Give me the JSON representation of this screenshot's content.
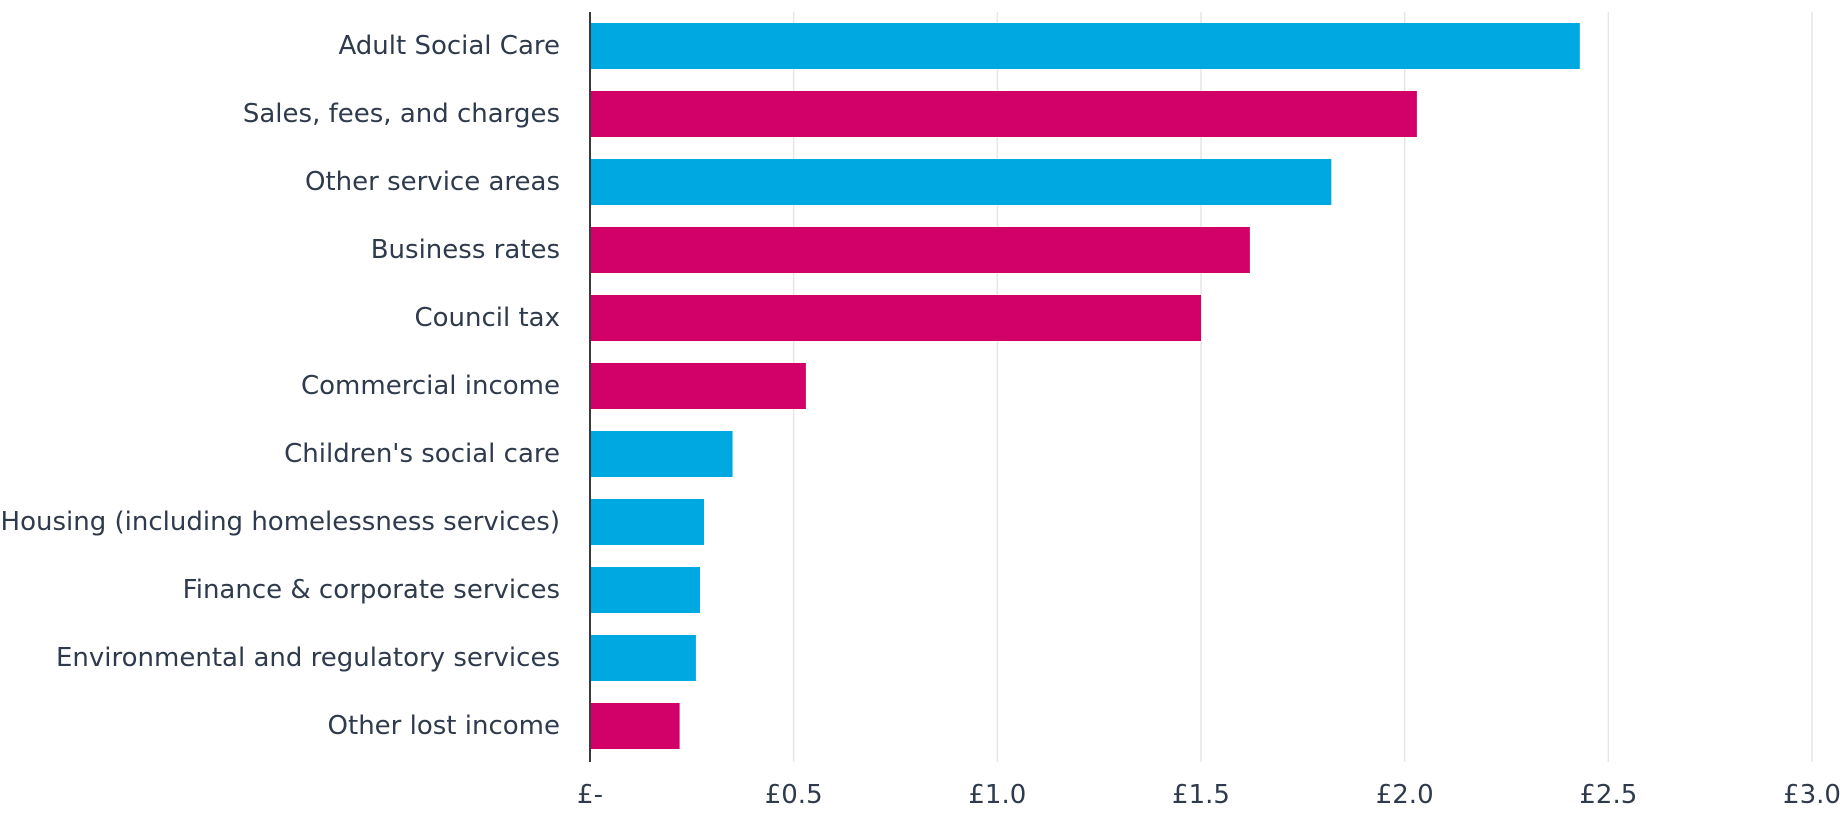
{
  "chart_data": {
    "type": "bar",
    "orientation": "horizontal",
    "title": "",
    "xlabel": "",
    "ylabel": "",
    "xlim": [
      0,
      3.0
    ],
    "grid": true,
    "legend": "none",
    "categories": [
      "Adult Social Care",
      "Sales, fees, and charges",
      "Other service areas",
      "Business rates",
      "Council tax",
      "Commercial income",
      "Children's social care",
      "Housing (including homelessness services)",
      "Finance & corporate services",
      "Environmental and regulatory services",
      "Other lost income"
    ],
    "values": [
      2.43,
      2.03,
      1.82,
      1.62,
      1.5,
      0.53,
      0.35,
      0.28,
      0.27,
      0.26,
      0.22
    ],
    "bar_colors": [
      "#00a8e1",
      "#d20069",
      "#00a8e1",
      "#d20069",
      "#d20069",
      "#d20069",
      "#00a8e1",
      "#00a8e1",
      "#00a8e1",
      "#00a8e1",
      "#d20069"
    ],
    "tick_values": [
      0,
      0.5,
      1.0,
      1.5,
      2.0,
      2.5,
      3.0
    ],
    "tick_labels": [
      "£-",
      "£0.5",
      "£1.0",
      "£1.5",
      "£2.0",
      "£2.5",
      "£3.0"
    ]
  },
  "colors": {
    "service": "#00a8e1",
    "income": "#d20069"
  }
}
